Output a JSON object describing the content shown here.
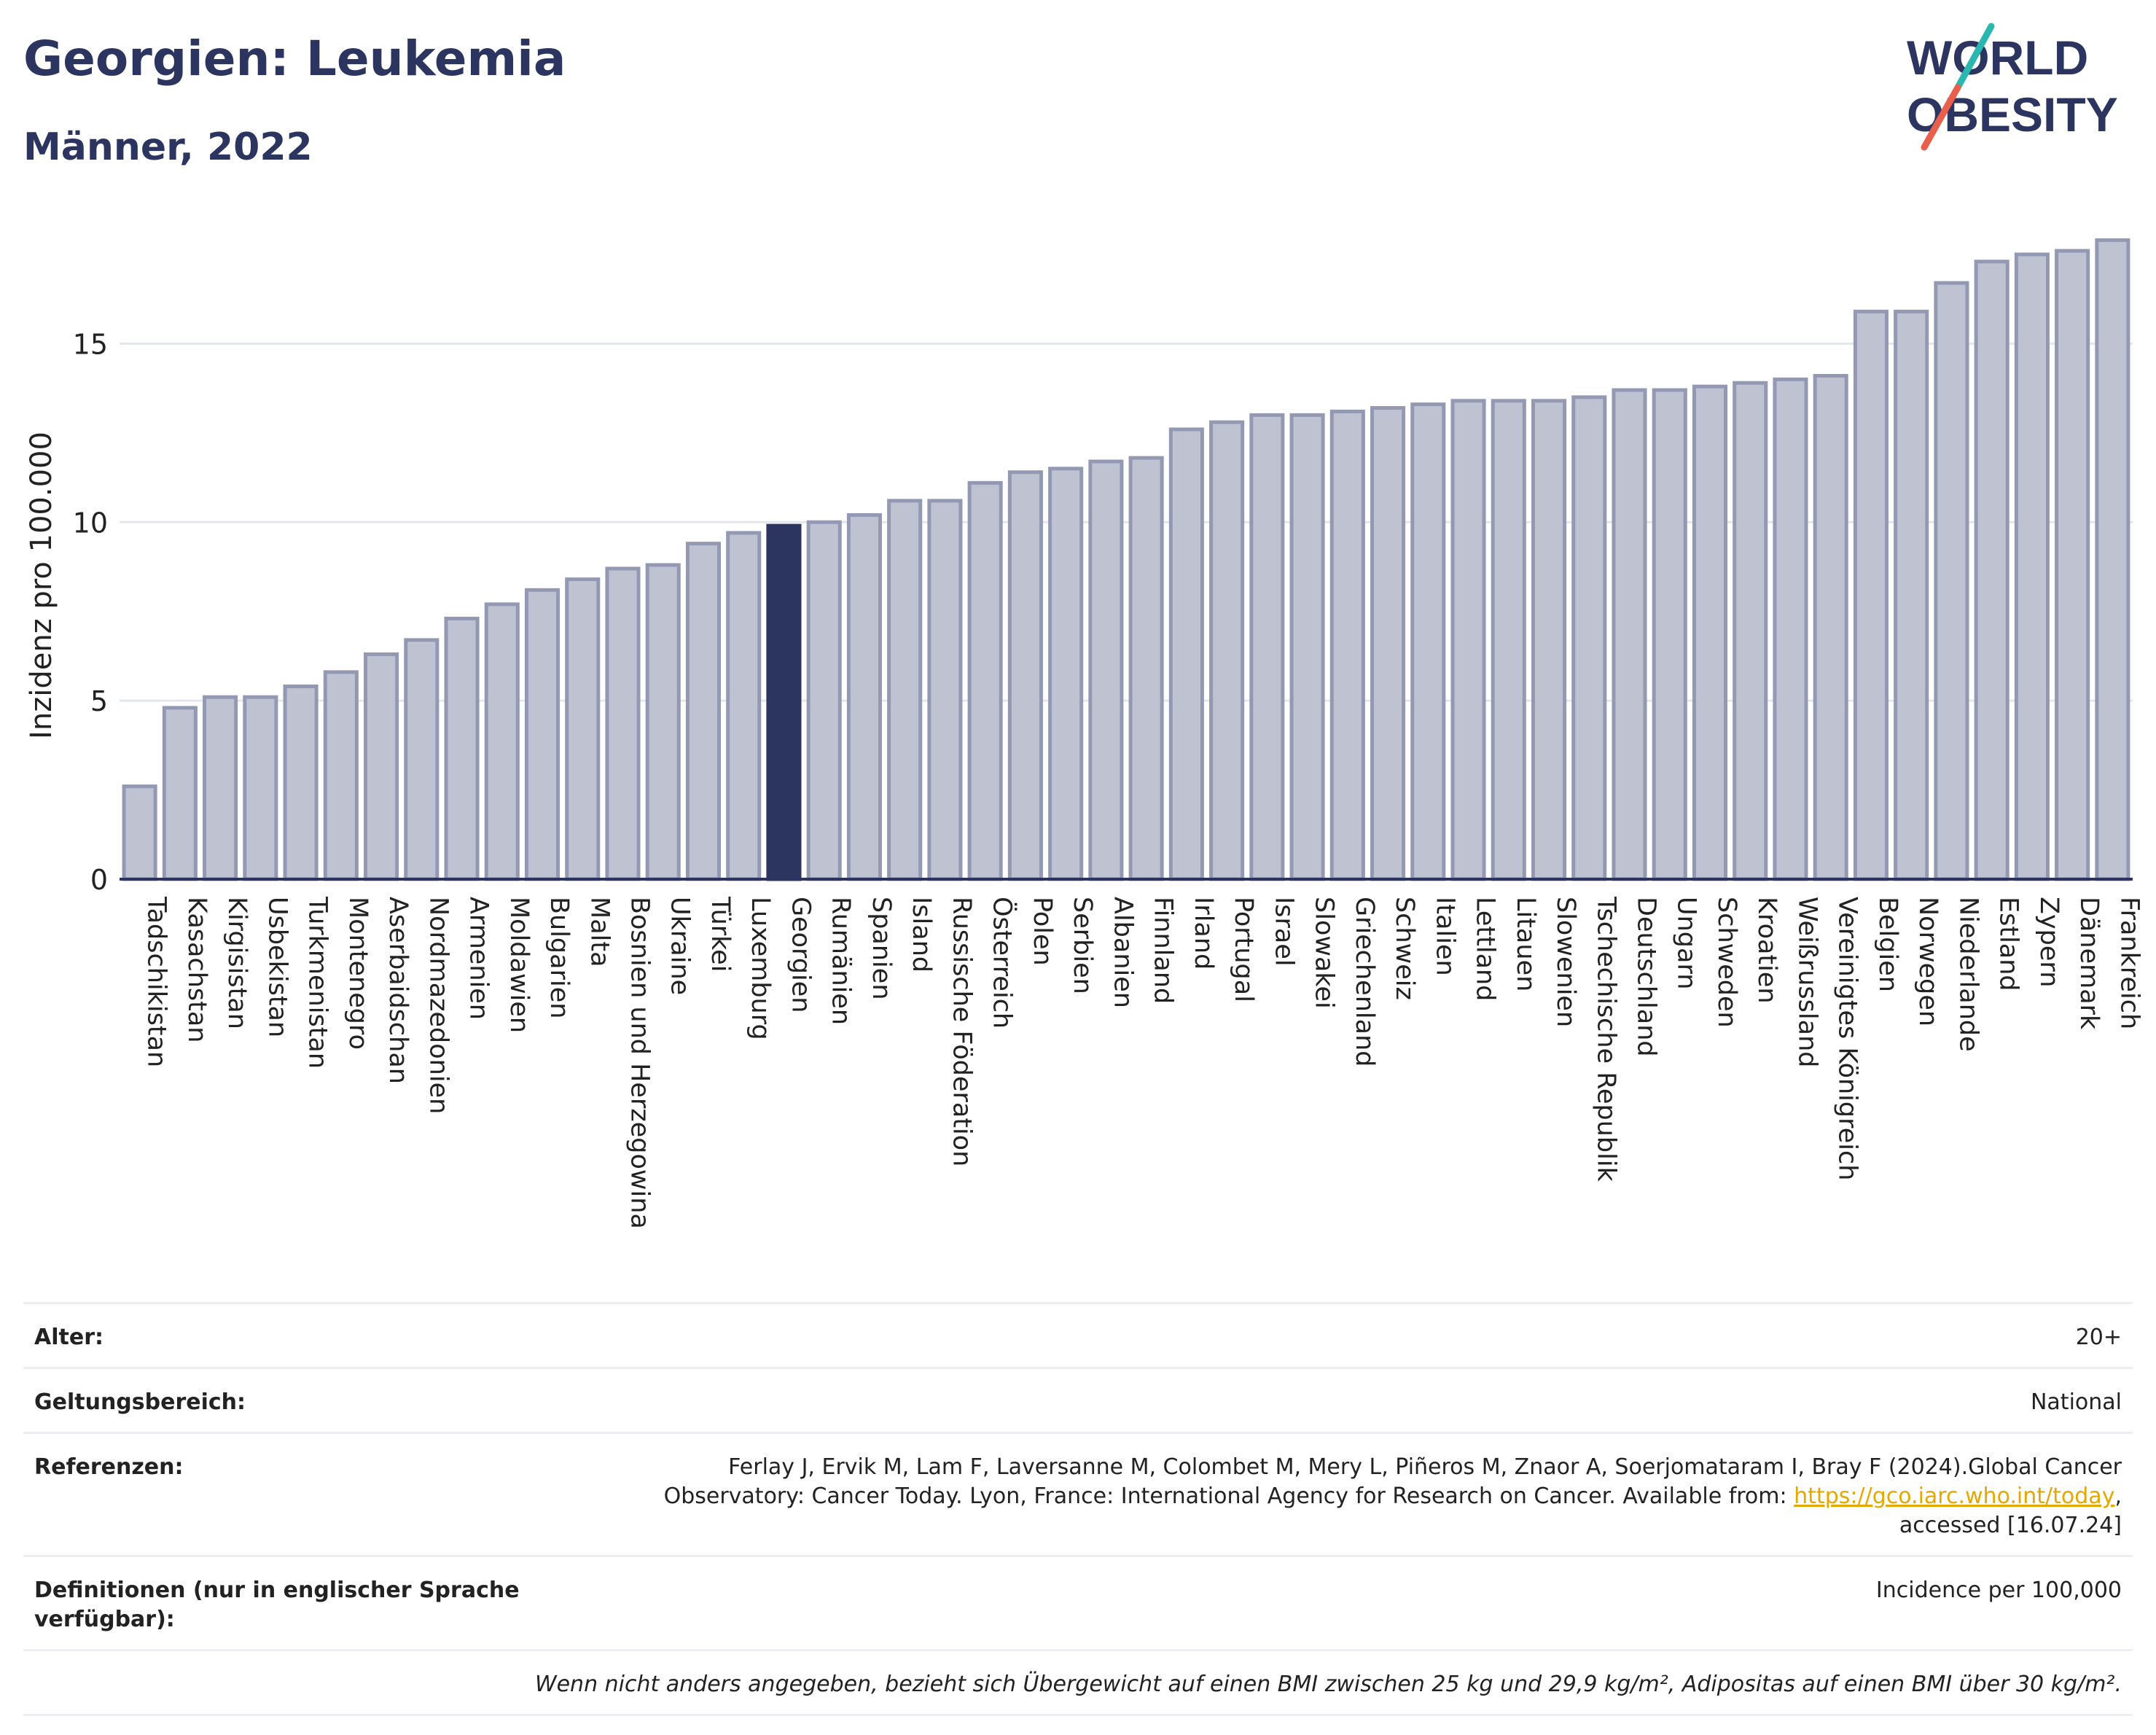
{
  "header": {
    "title": "Georgien: Leukemia",
    "subtitle": "Männer, 2022"
  },
  "logo": {
    "text_line1": "WORLD",
    "text_line2": "OBESITY",
    "colors": {
      "text": "#2c3560",
      "slash_teal": "#2ab7b0",
      "slash_red": "#e8604c"
    }
  },
  "colors": {
    "bar": "#bfc3d1",
    "bar_border": "#9499b3",
    "highlight": "#2c3560",
    "grid": "#e4e6ee",
    "axis": "#2c3560"
  },
  "chart_data": {
    "type": "bar",
    "title": "Georgien: Leukemia",
    "subtitle": "Männer, 2022",
    "xlabel": "",
    "ylabel": "Inzidenz pro 100.000",
    "ylim": [
      0,
      18.5
    ],
    "yticks": [
      0,
      5,
      10,
      15
    ],
    "grid": true,
    "highlight_category": "Georgien",
    "categories": [
      "Tadschikistan",
      "Kasachstan",
      "Kirgisistan",
      "Usbekistan",
      "Turkmenistan",
      "Montenegro",
      "Aserbaidschan",
      "Nordmazedonien",
      "Armenien",
      "Moldawien",
      "Bulgarien",
      "Malta",
      "Bosnien und Herzegowina",
      "Ukraine",
      "Türkei",
      "Luxemburg",
      "Georgien",
      "Rumänien",
      "Spanien",
      "Island",
      "Russische Föderation",
      "Österreich",
      "Polen",
      "Serbien",
      "Albanien",
      "Finnland",
      "Irland",
      "Portugal",
      "Israel",
      "Slowakei",
      "Griechenland",
      "Schweiz",
      "Italien",
      "Lettland",
      "Litauen",
      "Slowenien",
      "Tschechische Republik",
      "Deutschland",
      "Ungarn",
      "Schweden",
      "Kroatien",
      "Weißrussland",
      "Vereinigtes Königreich",
      "Belgien",
      "Norwegen",
      "Niederlande",
      "Estland",
      "Zypern",
      "Dänemark",
      "Frankreich"
    ],
    "values": [
      2.6,
      4.8,
      5.1,
      5.1,
      5.4,
      5.8,
      6.3,
      6.7,
      7.3,
      7.7,
      8.1,
      8.4,
      8.7,
      8.8,
      9.4,
      9.7,
      9.9,
      10.0,
      10.2,
      10.6,
      10.6,
      11.1,
      11.4,
      11.5,
      11.7,
      11.8,
      12.6,
      12.8,
      13.0,
      13.0,
      13.1,
      13.2,
      13.3,
      13.4,
      13.4,
      13.4,
      13.5,
      13.7,
      13.7,
      13.8,
      13.9,
      14.0,
      14.1,
      15.9,
      15.9,
      16.7,
      17.3,
      17.5,
      17.6,
      17.9
    ]
  },
  "info": {
    "age_label": "Alter:",
    "age_value": "20+",
    "scope_label": "Geltungsbereich:",
    "scope_value": "National",
    "refs_label": "Referenzen:",
    "refs_line1": "Ferlay J, Ervik M, Lam F, Laversanne M, Colombet M, Mery L, Piñeros M, Znaor A, Soerjomataram I, Bray F (2024).Global Cancer",
    "refs_line2_prefix": "Observatory: Cancer Today. Lyon, France: International Agency for Research on Cancer. Available from: ",
    "refs_link": "https://gco.iarc.who.int/today",
    "refs_line2_suffix": ",",
    "refs_line3": "accessed [16.07.24]",
    "def_label": "Definitionen (nur in englischer Sprache verfügbar):",
    "def_value": "Incidence per 100,000",
    "footnote": "Wenn nicht anders angegeben, bezieht sich Übergewicht auf einen BMI zwischen 25 kg und 29,9 kg/m², Adipositas auf einen BMI über 30 kg/m²."
  }
}
